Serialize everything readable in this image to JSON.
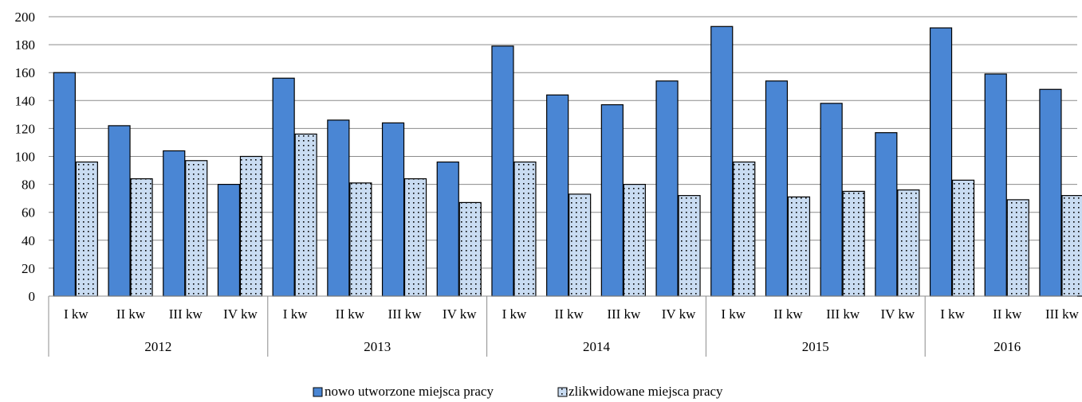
{
  "chart_data": {
    "type": "bar",
    "categories": [
      "I kw",
      "II kw",
      "III kw",
      "IV kw",
      "I kw",
      "II kw",
      "III kw",
      "IV kw",
      "I kw",
      "II kw",
      "III kw",
      "IV kw",
      "I kw",
      "II kw",
      "III kw",
      "IV kw",
      "I kw",
      "II kw",
      "III kw"
    ],
    "groups": [
      {
        "label": "2012",
        "count": 4
      },
      {
        "label": "2013",
        "count": 4
      },
      {
        "label": "2014",
        "count": 4
      },
      {
        "label": "2015",
        "count": 4
      },
      {
        "label": "2016",
        "count": 3
      }
    ],
    "series": [
      {
        "name": "nowo utworzone miejsca pracy",
        "color": "#4a86d4",
        "pattern": "solid",
        "values": [
          160,
          122,
          104,
          80,
          156,
          126,
          124,
          96,
          179,
          144,
          137,
          154,
          193,
          154,
          138,
          117,
          192,
          159,
          148
        ]
      },
      {
        "name": "zlikwidowane miejsca pracy",
        "color": "#c9dcf2",
        "pattern": "dotted",
        "values": [
          96,
          84,
          97,
          100,
          116,
          81,
          84,
          67,
          96,
          73,
          80,
          72,
          96,
          71,
          75,
          76,
          83,
          69,
          72
        ]
      }
    ],
    "yticks": [
      "0",
      "20",
      "40",
      "60",
      "80",
      "100",
      "120",
      "140",
      "160",
      "180",
      "200"
    ],
    "ylim": [
      0,
      200
    ],
    "grid": true,
    "legend_position": "bottom"
  }
}
